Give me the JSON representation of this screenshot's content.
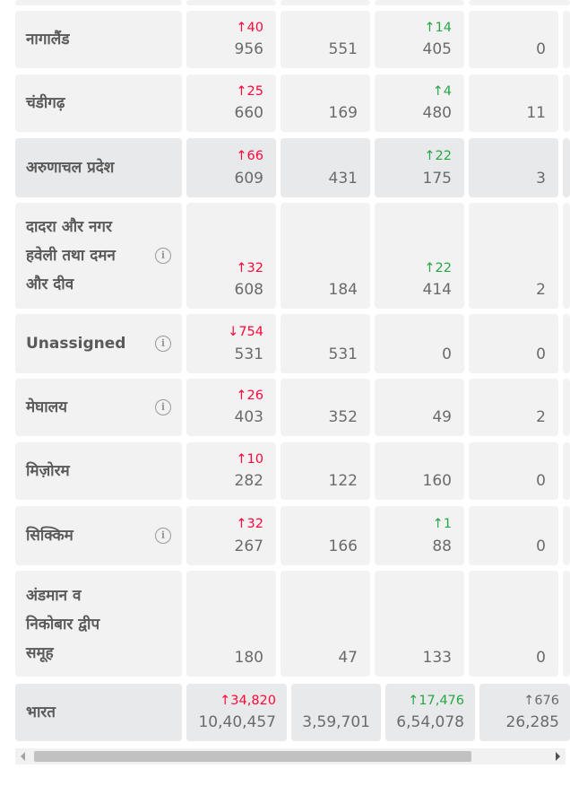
{
  "rows": [
    {
      "state": "नागालैंड",
      "confirmed_delta": "↑40",
      "confirmed": "956",
      "active": "551",
      "recovered_delta": "↑14",
      "recovered": "405",
      "deceased": "0"
    },
    {
      "state": "चंडीगढ़",
      "confirmed_delta": "↑25",
      "confirmed": "660",
      "active": "169",
      "recovered_delta": "↑4",
      "recovered": "480",
      "deceased": "11"
    },
    {
      "state": "अरुणाचल प्रदेश",
      "confirmed_delta": "↑66",
      "confirmed": "609",
      "active": "431",
      "recovered_delta": "↑22",
      "recovered": "175",
      "deceased": "3"
    },
    {
      "state_lines": [
        "दादरा और नगर",
        "हवेली तथा दमन",
        "और दीव"
      ],
      "confirmed_delta": "↑32",
      "confirmed": "608",
      "active": "184",
      "recovered_delta": "↑22",
      "recovered": "414",
      "deceased": "2"
    },
    {
      "state": "Unassigned",
      "confirmed_delta": "↓754",
      "confirmed": "531",
      "active": "531",
      "recovered": "0",
      "deceased": "0"
    },
    {
      "state": "मेघालय",
      "confirmed_delta": "↑26",
      "confirmed": "403",
      "active": "352",
      "recovered": "49",
      "deceased": "2"
    },
    {
      "state": "मिज़ोरम",
      "confirmed_delta": "↑10",
      "confirmed": "282",
      "active": "122",
      "recovered": "160",
      "deceased": "0"
    },
    {
      "state": "सिक्किम",
      "confirmed_delta": "↑32",
      "confirmed": "267",
      "active": "166",
      "recovered_delta": "↑1",
      "recovered": "88",
      "deceased": "0"
    },
    {
      "state_lines": [
        "अंडमान व",
        "निकोबार द्वीप",
        "समूह"
      ],
      "confirmed": "180",
      "active": "47",
      "recovered": "133",
      "deceased": "0"
    }
  ],
  "total": {
    "state": "भारत",
    "confirmed_delta": "↑34,820",
    "confirmed": "10,40,457",
    "active": "3,59,701",
    "recovered_delta": "↑17,476",
    "recovered": "6,54,078",
    "deceased_delta": "↑676",
    "deceased": "26,285"
  },
  "icons": {
    "info": "info-icon",
    "scroll_left": "arrow-left-icon",
    "scroll_right": "arrow-right-icon"
  },
  "colors": {
    "increase_confirmed": "#ff073a",
    "increase_recovered": "#28a745",
    "cell_bg": "#f2f2f3",
    "cell_bg_alt": "#e8e9eb"
  }
}
